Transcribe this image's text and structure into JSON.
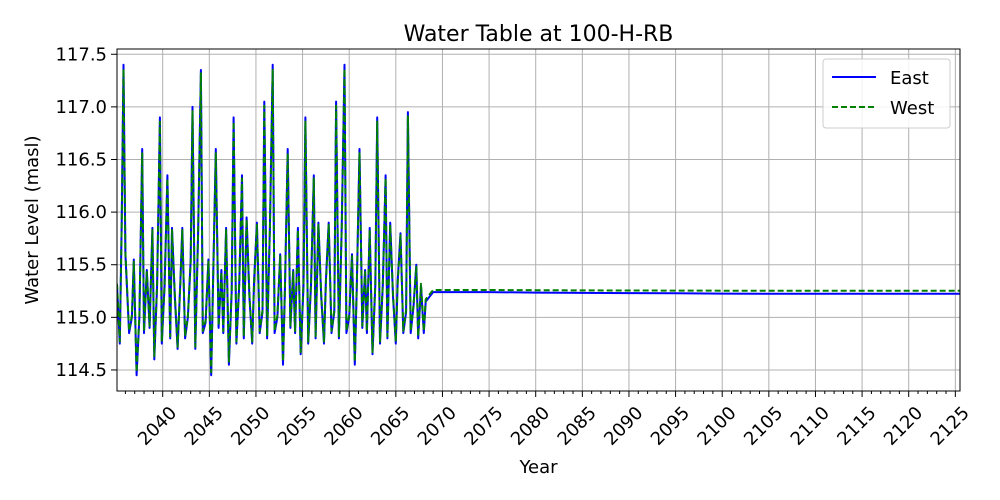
{
  "chart_data": {
    "type": "line",
    "title": "Water Table at 100-H-RB",
    "xlabel": "Year",
    "ylabel": "Water Level (masl)",
    "xlim": [
      2035.1,
      2125.5
    ],
    "ylim": [
      114.3,
      117.55
    ],
    "grid": true,
    "legend_placement": "top-right",
    "x_ticks": [
      2040,
      2045,
      2050,
      2055,
      2060,
      2065,
      2070,
      2075,
      2080,
      2085,
      2090,
      2095,
      2100,
      2105,
      2110,
      2115,
      2120,
      2125
    ],
    "y_ticks": [
      114.5,
      115.0,
      115.5,
      116.0,
      116.5,
      117.0,
      117.5
    ],
    "series": [
      {
        "name": "East",
        "color": "#0000ff",
        "style": "solid",
        "x": [
          2035.1,
          2035.4,
          2035.6,
          2035.8,
          2036.0,
          2036.4,
          2036.7,
          2036.9,
          2037.2,
          2037.5,
          2037.8,
          2038.0,
          2038.3,
          2038.6,
          2038.9,
          2039.1,
          2039.4,
          2039.7,
          2039.9,
          2040.2,
          2040.5,
          2040.8,
          2041.0,
          2041.3,
          2041.6,
          2041.9,
          2042.1,
          2042.4,
          2042.7,
          2043.0,
          2043.2,
          2043.5,
          2043.8,
          2044.1,
          2044.3,
          2044.6,
          2044.9,
          2045.2,
          2045.4,
          2045.7,
          2046.0,
          2046.3,
          2046.5,
          2046.8,
          2047.1,
          2047.4,
          2047.6,
          2047.9,
          2048.2,
          2048.5,
          2048.7,
          2049.0,
          2049.3,
          2049.6,
          2049.8,
          2050.1,
          2050.4,
          2050.7,
          2050.9,
          2051.2,
          2051.5,
          2051.8,
          2052.0,
          2052.3,
          2052.6,
          2052.9,
          2053.1,
          2053.4,
          2053.7,
          2054.0,
          2054.2,
          2054.5,
          2054.8,
          2055.1,
          2055.3,
          2055.6,
          2055.9,
          2056.2,
          2056.4,
          2056.7,
          2057.0,
          2057.3,
          2057.5,
          2057.8,
          2058.1,
          2058.4,
          2058.6,
          2058.9,
          2059.2,
          2059.5,
          2059.7,
          2060.0,
          2060.3,
          2060.6,
          2060.8,
          2061.1,
          2061.4,
          2061.7,
          2061.9,
          2062.2,
          2062.5,
          2062.8,
          2063.0,
          2063.3,
          2063.6,
          2063.9,
          2064.1,
          2064.4,
          2064.7,
          2065.0,
          2065.2,
          2065.5,
          2065.8,
          2066.1,
          2066.3,
          2066.6,
          2066.9,
          2067.2,
          2067.4,
          2067.7,
          2068.0,
          2068.2,
          2069.0,
          2070,
          2075,
          2080,
          2085,
          2090,
          2095,
          2100,
          2105,
          2110,
          2115,
          2120,
          2125.5
        ],
        "y": [
          115.3,
          114.75,
          115.9,
          117.4,
          115.6,
          114.85,
          115.0,
          115.55,
          114.45,
          115.0,
          116.6,
          114.85,
          115.45,
          114.9,
          115.85,
          114.6,
          115.3,
          116.9,
          114.75,
          115.3,
          116.35,
          114.8,
          115.85,
          115.2,
          114.7,
          115.35,
          115.85,
          114.8,
          115.0,
          115.55,
          117.0,
          114.7,
          115.8,
          117.35,
          114.85,
          114.95,
          115.55,
          114.45,
          115.3,
          116.6,
          114.9,
          115.45,
          114.85,
          115.85,
          114.55,
          115.25,
          116.9,
          114.75,
          115.3,
          116.35,
          114.8,
          115.95,
          115.2,
          114.75,
          115.35,
          115.9,
          114.85,
          115.05,
          117.05,
          114.8,
          115.85,
          117.4,
          114.85,
          115.0,
          115.6,
          114.55,
          115.25,
          116.6,
          114.9,
          115.45,
          114.85,
          115.85,
          114.65,
          115.3,
          116.9,
          114.75,
          115.3,
          116.35,
          114.8,
          115.9,
          115.2,
          114.75,
          115.35,
          115.9,
          114.85,
          115.05,
          117.05,
          114.8,
          115.85,
          117.4,
          114.85,
          115.0,
          115.6,
          114.55,
          115.25,
          116.6,
          114.9,
          115.45,
          114.85,
          115.85,
          114.65,
          115.3,
          116.9,
          114.75,
          115.3,
          116.35,
          114.8,
          115.9,
          115.2,
          114.75,
          115.35,
          115.8,
          114.85,
          115.05,
          116.95,
          114.85,
          115.1,
          115.5,
          114.8,
          115.3,
          114.85,
          115.15,
          115.24,
          115.24,
          115.24,
          115.235,
          115.232,
          115.23,
          115.228,
          115.226,
          115.224,
          115.224,
          115.224,
          115.224,
          115.224
        ]
      },
      {
        "name": "West",
        "color": "#008000",
        "style": "dashed",
        "x": [
          2035.1,
          2035.4,
          2035.6,
          2035.8,
          2036.0,
          2036.4,
          2036.7,
          2036.9,
          2037.2,
          2037.5,
          2037.8,
          2038.0,
          2038.3,
          2038.6,
          2038.9,
          2039.1,
          2039.4,
          2039.7,
          2039.9,
          2040.2,
          2040.5,
          2040.8,
          2041.0,
          2041.3,
          2041.6,
          2041.9,
          2042.1,
          2042.4,
          2042.7,
          2043.0,
          2043.2,
          2043.5,
          2043.8,
          2044.1,
          2044.3,
          2044.6,
          2044.9,
          2045.2,
          2045.4,
          2045.7,
          2046.0,
          2046.3,
          2046.5,
          2046.8,
          2047.1,
          2047.4,
          2047.6,
          2047.9,
          2048.2,
          2048.5,
          2048.7,
          2049.0,
          2049.3,
          2049.6,
          2049.8,
          2050.1,
          2050.4,
          2050.7,
          2050.9,
          2051.2,
          2051.5,
          2051.8,
          2052.0,
          2052.3,
          2052.6,
          2052.9,
          2053.1,
          2053.4,
          2053.7,
          2054.0,
          2054.2,
          2054.5,
          2054.8,
          2055.1,
          2055.3,
          2055.6,
          2055.9,
          2056.2,
          2056.4,
          2056.7,
          2057.0,
          2057.3,
          2057.5,
          2057.8,
          2058.1,
          2058.4,
          2058.6,
          2058.9,
          2059.2,
          2059.5,
          2059.7,
          2060.0,
          2060.3,
          2060.6,
          2060.8,
          2061.1,
          2061.4,
          2061.7,
          2061.9,
          2062.2,
          2062.5,
          2062.8,
          2063.0,
          2063.3,
          2063.6,
          2063.9,
          2064.1,
          2064.4,
          2064.7,
          2065.0,
          2065.2,
          2065.5,
          2065.8,
          2066.1,
          2066.3,
          2066.6,
          2066.9,
          2067.2,
          2067.4,
          2067.7,
          2068.0,
          2068.2,
          2069.0,
          2070,
          2075,
          2080,
          2085,
          2090,
          2095,
          2100,
          2105,
          2110,
          2115,
          2120,
          2125.5
        ],
        "y": [
          115.32,
          114.77,
          115.88,
          117.36,
          115.62,
          114.87,
          115.02,
          115.53,
          114.48,
          115.02,
          116.56,
          114.87,
          115.43,
          114.92,
          115.83,
          114.63,
          115.32,
          116.86,
          114.77,
          115.32,
          116.32,
          114.82,
          115.83,
          115.22,
          114.72,
          115.33,
          115.83,
          114.82,
          115.02,
          115.53,
          116.96,
          114.72,
          115.78,
          117.32,
          114.87,
          114.97,
          115.53,
          114.48,
          115.32,
          116.56,
          114.92,
          115.43,
          114.87,
          115.83,
          114.58,
          115.27,
          116.86,
          114.77,
          115.32,
          116.32,
          114.82,
          115.93,
          115.22,
          114.77,
          115.33,
          115.88,
          114.87,
          115.07,
          117.01,
          114.82,
          115.83,
          117.36,
          114.87,
          115.02,
          115.58,
          114.58,
          115.27,
          116.56,
          114.92,
          115.43,
          114.87,
          115.83,
          114.67,
          115.32,
          116.86,
          114.77,
          115.32,
          116.32,
          114.82,
          115.88,
          115.22,
          114.77,
          115.33,
          115.88,
          114.87,
          115.07,
          117.01,
          114.82,
          115.83,
          117.36,
          114.87,
          115.02,
          115.58,
          114.58,
          115.27,
          116.56,
          114.92,
          115.43,
          114.87,
          115.83,
          114.67,
          115.32,
          116.86,
          114.77,
          115.32,
          116.32,
          114.82,
          115.88,
          115.22,
          114.77,
          115.33,
          115.78,
          114.87,
          115.07,
          116.91,
          114.87,
          115.12,
          115.48,
          114.82,
          115.32,
          114.87,
          115.17,
          115.26,
          115.26,
          115.26,
          115.258,
          115.256,
          115.255,
          115.254,
          115.253,
          115.252,
          115.252,
          115.252,
          115.252,
          115.252
        ]
      }
    ]
  }
}
